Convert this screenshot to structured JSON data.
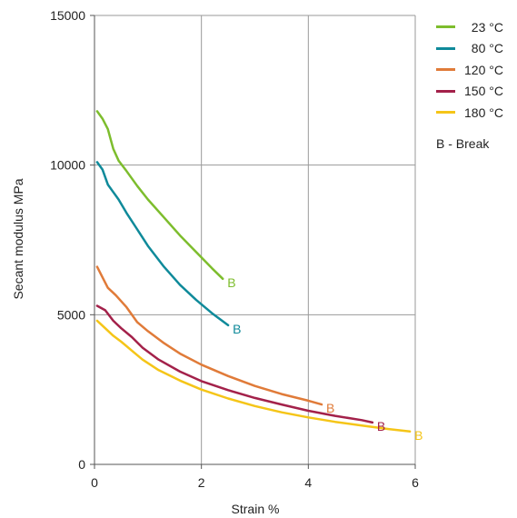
{
  "chart_data": {
    "type": "line",
    "xlabel": "Strain  %",
    "ylabel": "Secant modulus  MPa",
    "xlim": [
      0,
      6
    ],
    "ylim": [
      0,
      15000
    ],
    "xticks": [
      "0",
      "2",
      "4",
      "6"
    ],
    "yticks": [
      "0",
      "5000",
      "10000",
      "15000"
    ],
    "grid": true,
    "legend_position": "right",
    "break_note": "B - Break",
    "series": [
      {
        "name": "23 °C",
        "color": "#7dbd2d",
        "break_label": "B",
        "points": [
          [
            0.05,
            11800
          ],
          [
            0.15,
            11550
          ],
          [
            0.25,
            11200
          ],
          [
            0.35,
            10550
          ],
          [
            0.45,
            10150
          ],
          [
            0.6,
            9800
          ],
          [
            0.8,
            9300
          ],
          [
            1.0,
            8850
          ],
          [
            1.3,
            8250
          ],
          [
            1.6,
            7650
          ],
          [
            1.9,
            7100
          ],
          [
            2.2,
            6550
          ],
          [
            2.4,
            6200
          ]
        ]
      },
      {
        "name": "80 °C",
        "color": "#0f8a9a",
        "break_label": "B",
        "points": [
          [
            0.05,
            10100
          ],
          [
            0.15,
            9850
          ],
          [
            0.25,
            9350
          ],
          [
            0.35,
            9100
          ],
          [
            0.45,
            8850
          ],
          [
            0.6,
            8400
          ],
          [
            0.8,
            7850
          ],
          [
            1.0,
            7300
          ],
          [
            1.3,
            6600
          ],
          [
            1.6,
            6000
          ],
          [
            1.9,
            5500
          ],
          [
            2.2,
            5050
          ],
          [
            2.5,
            4650
          ]
        ]
      },
      {
        "name": "120 °C",
        "color": "#e07b39",
        "break_label": "B",
        "points": [
          [
            0.05,
            6600
          ],
          [
            0.15,
            6250
          ],
          [
            0.25,
            5900
          ],
          [
            0.4,
            5650
          ],
          [
            0.6,
            5250
          ],
          [
            0.8,
            4750
          ],
          [
            1.0,
            4450
          ],
          [
            1.3,
            4050
          ],
          [
            1.6,
            3700
          ],
          [
            2.0,
            3330
          ],
          [
            2.5,
            2950
          ],
          [
            3.0,
            2620
          ],
          [
            3.5,
            2350
          ],
          [
            4.0,
            2130
          ],
          [
            4.25,
            2000
          ]
        ]
      },
      {
        "name": "150 °C",
        "color": "#a3214a",
        "break_label": "B",
        "points": [
          [
            0.05,
            5300
          ],
          [
            0.2,
            5150
          ],
          [
            0.35,
            4800
          ],
          [
            0.5,
            4550
          ],
          [
            0.7,
            4250
          ],
          [
            0.9,
            3900
          ],
          [
            1.2,
            3500
          ],
          [
            1.6,
            3100
          ],
          [
            2.0,
            2780
          ],
          [
            2.5,
            2480
          ],
          [
            3.0,
            2220
          ],
          [
            3.5,
            2000
          ],
          [
            4.0,
            1790
          ],
          [
            4.5,
            1620
          ],
          [
            5.0,
            1480
          ],
          [
            5.2,
            1400
          ]
        ]
      },
      {
        "name": "180 °C",
        "color": "#f5c518",
        "break_label": "B",
        "points": [
          [
            0.05,
            4800
          ],
          [
            0.2,
            4550
          ],
          [
            0.35,
            4300
          ],
          [
            0.5,
            4100
          ],
          [
            0.7,
            3800
          ],
          [
            0.9,
            3500
          ],
          [
            1.2,
            3150
          ],
          [
            1.6,
            2800
          ],
          [
            2.0,
            2500
          ],
          [
            2.5,
            2200
          ],
          [
            3.0,
            1950
          ],
          [
            3.5,
            1740
          ],
          [
            4.0,
            1570
          ],
          [
            4.5,
            1420
          ],
          [
            5.0,
            1300
          ],
          [
            5.5,
            1180
          ],
          [
            5.9,
            1100
          ]
        ]
      }
    ]
  }
}
